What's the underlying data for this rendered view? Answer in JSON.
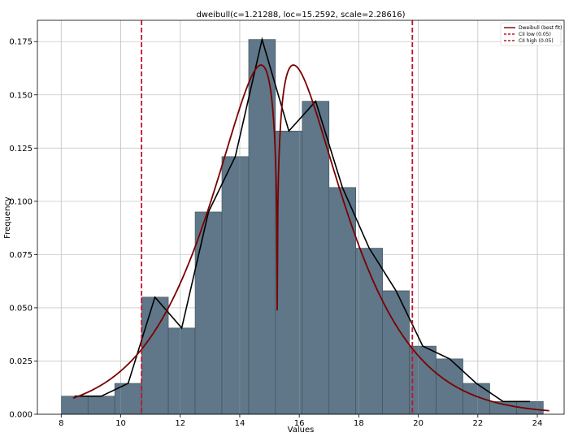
{
  "chart_data": {
    "type": "bar",
    "title": "dweibull(c=1.21288, loc=15.2592, scale=2.28616)",
    "xlabel": "Values",
    "ylabel": "Frequency",
    "xlim": [
      7.2,
      24.9
    ],
    "ylim": [
      0,
      0.185
    ],
    "xticks": [
      8,
      10,
      12,
      14,
      16,
      18,
      20,
      22,
      24
    ],
    "yticks": [
      0.0,
      0.025,
      0.05,
      0.075,
      0.1,
      0.125,
      0.15,
      0.175
    ],
    "ytick_labels": [
      "0.000",
      "0.025",
      "0.050",
      "0.075",
      "0.100",
      "0.125",
      "0.150",
      "0.175"
    ],
    "grid": true,
    "legend_position": "top-right",
    "bar_color": "#5f7788",
    "histogram": {
      "bin_edges": [
        8.0,
        8.9,
        9.8,
        10.7,
        11.6,
        12.5,
        13.4,
        14.3,
        15.2,
        16.1,
        17.0,
        17.9,
        18.8,
        19.7,
        20.6,
        21.5,
        22.4,
        23.3,
        24.2
      ],
      "values": [
        0.0085,
        0.0085,
        0.0145,
        0.055,
        0.0405,
        0.095,
        0.121,
        0.176,
        0.133,
        0.147,
        0.1065,
        0.078,
        0.058,
        0.032,
        0.026,
        0.0145,
        0.006,
        0.006
      ]
    },
    "empirical_line": {
      "color": "#000000",
      "x": [
        8.45,
        9.35,
        10.25,
        11.15,
        12.05,
        12.95,
        13.85,
        14.75,
        15.65,
        16.55,
        17.45,
        18.35,
        19.25,
        20.15,
        21.05,
        21.95,
        22.85,
        23.75
      ],
      "y": [
        0.0085,
        0.0085,
        0.0145,
        0.055,
        0.0405,
        0.095,
        0.121,
        0.176,
        0.133,
        0.147,
        0.1065,
        0.078,
        0.058,
        0.032,
        0.026,
        0.0145,
        0.006,
        0.006
      ]
    },
    "fit": {
      "name": "Dweibull (best fit)",
      "color": "#7a0000",
      "c": 1.21288,
      "loc": 15.2592,
      "scale": 2.28616,
      "x_range": [
        8.4,
        24.4
      ]
    },
    "cii_low": {
      "name": "CII low (0.05)",
      "x": 10.7,
      "color": "#c0142c"
    },
    "cii_high": {
      "name": "CII high (0.05)",
      "x": 19.8,
      "color": "#c0142c"
    }
  }
}
